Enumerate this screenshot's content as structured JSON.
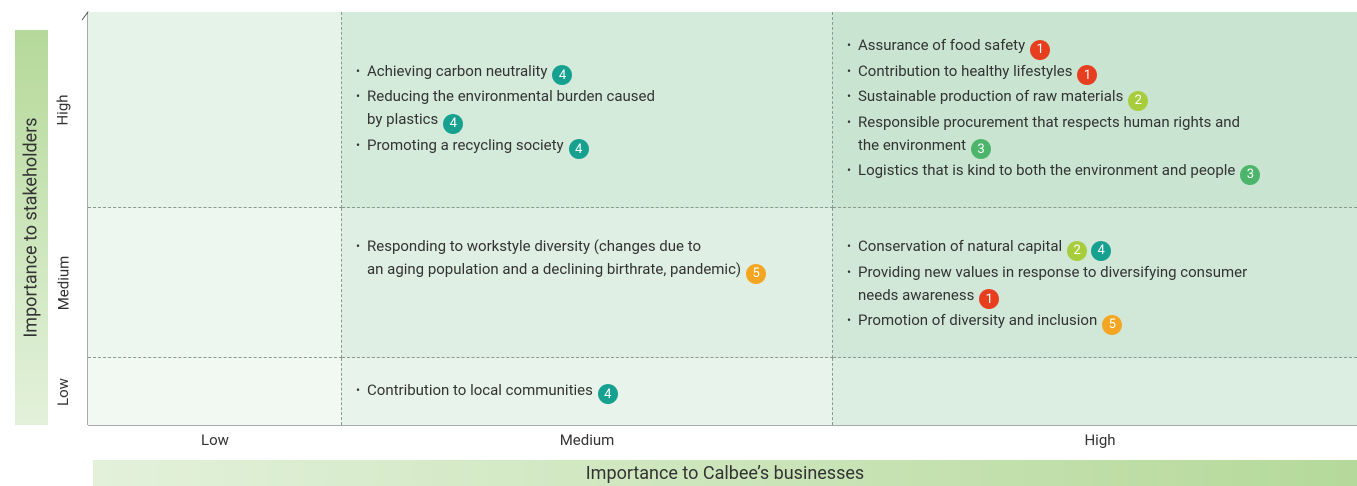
{
  "y_axis_label": "Importance to stakeholders",
  "x_axis_label": "Importance to Calbee’s businesses",
  "row_labels": [
    "High",
    "Medium",
    "Low"
  ],
  "column_labels": [
    "Low",
    "Medium",
    "High"
  ],
  "badge_colors": {
    "1": "#e63e1f",
    "2": "#a7cd3c",
    "3": "#4db56b",
    "4": "#16a08f",
    "5": "#f4a623"
  },
  "cells": [
    [
      {
        "items": []
      },
      {
        "items": [
          {
            "lines": [
              "Achieving carbon neutrality"
            ],
            "badges": [
              "4"
            ]
          },
          {
            "lines": [
              "Reducing the environmental burden caused",
              "by plastics"
            ],
            "badges": [
              "4"
            ]
          },
          {
            "lines": [
              "Promoting a recycling society"
            ],
            "badges": [
              "4"
            ]
          }
        ]
      },
      {
        "items": [
          {
            "lines": [
              "Assurance of food safety"
            ],
            "badges": [
              "1"
            ]
          },
          {
            "lines": [
              "Contribution to healthy lifestyles"
            ],
            "badges": [
              "1"
            ]
          },
          {
            "lines": [
              "Sustainable production of raw materials"
            ],
            "badges": [
              "2"
            ]
          },
          {
            "lines": [
              "Responsible procurement that respects human rights and",
              "the environment"
            ],
            "badges": [
              "3"
            ]
          },
          {
            "lines": [
              "Logistics that is kind to both the environment and people"
            ],
            "badges": [
              "3"
            ]
          }
        ]
      }
    ],
    [
      {
        "items": []
      },
      {
        "items": [
          {
            "lines": [
              "Responding to workstyle diversity (changes due to",
              "an aging population and a declining birthrate, pandemic)"
            ],
            "badges": [
              "5"
            ]
          }
        ]
      },
      {
        "items": [
          {
            "lines": [
              "Conservation of natural capital"
            ],
            "badges": [
              "2",
              "4"
            ]
          },
          {
            "lines": [
              "Providing new values in response to diversifying consumer",
              "needs awareness"
            ],
            "badges": [
              "1"
            ]
          },
          {
            "lines": [
              "Promotion of diversity and inclusion"
            ],
            "badges": [
              "5"
            ]
          }
        ]
      }
    ],
    [
      {
        "items": []
      },
      {
        "items": [
          {
            "lines": [
              "Contribution to local communities"
            ],
            "badges": [
              "4"
            ]
          }
        ]
      },
      {
        "items": []
      }
    ]
  ]
}
